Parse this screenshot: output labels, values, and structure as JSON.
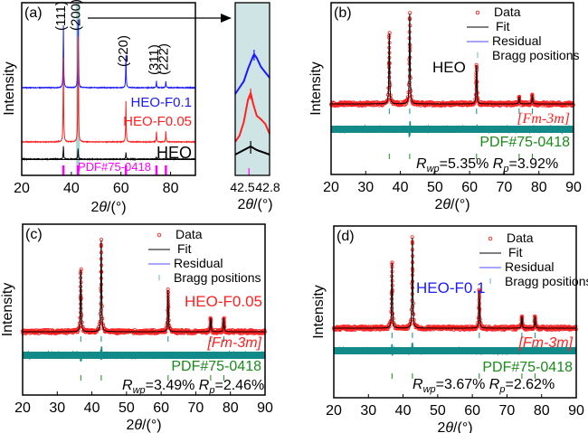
{
  "figure": {
    "colors": {
      "blue": "#1a1aff",
      "red": "#ff2020",
      "black": "#000000",
      "magenta": "#ff00ff",
      "teal": "#138a8a",
      "green": "#1a8a1a",
      "inset_bg": "#cfe5e5",
      "highlight": "#a8d4d4",
      "residual_legend": "#8888ff",
      "bragg_legend": "#66bbbb"
    }
  },
  "chart_data": [
    {
      "id": "a",
      "type": "line",
      "panel_label": "(a)",
      "xlabel": "2θ/(°)",
      "ylabel": "Intensity",
      "xlim": [
        20,
        90
      ],
      "xticks": [
        20,
        40,
        60,
        80
      ],
      "series": [
        {
          "name": "HEO-F0.1",
          "color": "blue",
          "offset": 3,
          "peaks": [
            [
              36.8,
              0.55
            ],
            [
              42.7,
              0.62
            ],
            [
              62.0,
              0.29
            ],
            [
              74.3,
              0.06
            ],
            [
              78.1,
              0.06
            ]
          ]
        },
        {
          "name": "HEO-F0.05",
          "color": "red",
          "offset": 2,
          "peaks": [
            [
              36.8,
              0.62
            ],
            [
              42.7,
              0.8
            ],
            [
              62.0,
              0.3
            ],
            [
              74.3,
              0.08
            ],
            [
              78.1,
              0.08
            ]
          ]
        },
        {
          "name": "HEO",
          "color": "black",
          "offset": 1,
          "peaks": [
            [
              36.8,
              0.12
            ],
            [
              42.7,
              0.1
            ],
            [
              62.0,
              0.06
            ],
            [
              74.3,
              0.02
            ],
            [
              78.1,
              0.02
            ]
          ]
        }
      ],
      "miller_indices": [
        {
          "label": "(111)",
          "x": 36.8
        },
        {
          "label": "(200)",
          "x": 42.7
        },
        {
          "label": "(220)",
          "x": 62.0
        },
        {
          "label": "(311)",
          "x": 74.3
        },
        {
          "label": "(222)",
          "x": 78.1
        }
      ],
      "reference": {
        "label": "PDF#75-0418",
        "positions": [
          36.8,
          42.7,
          62.0,
          74.3,
          78.1
        ]
      },
      "sample_labels": [
        "HEO-F0.1",
        "HEO-F0.05",
        "HEO"
      ]
    },
    {
      "id": "a-inset",
      "type": "line",
      "xlabel": "2θ/(°)",
      "xlim": [
        42.45,
        42.85
      ],
      "xticks": [
        42.5,
        42.8
      ],
      "series": [
        {
          "name": "HEO-F0.1",
          "color": "blue",
          "peak_x": 42.67
        },
        {
          "name": "HEO-F0.05",
          "color": "red",
          "peak_x": 42.63
        },
        {
          "name": "HEO",
          "color": "black",
          "peak_x": 42.63
        }
      ],
      "reference_position": 42.61
    },
    {
      "id": "b",
      "type": "scatter",
      "panel_label": "(b)",
      "xlabel": "2θ/(°)",
      "ylabel": "Intensity",
      "xlim": [
        20,
        90
      ],
      "xticks": [
        20,
        30,
        40,
        50,
        60,
        70,
        80,
        90
      ],
      "legend": [
        "Data",
        "Fit",
        "Residual",
        "Bragg positions"
      ],
      "sample": "HEO",
      "sample_color": "black",
      "space_group": "[Fm-3m]",
      "reference": "PDF#75-0418",
      "rwp": "=5.35%",
      "rp": "=3.92%",
      "peaks": [
        [
          36.8,
          0.78
        ],
        [
          42.7,
          1.0
        ],
        [
          62.0,
          0.43
        ],
        [
          74.3,
          0.08
        ],
        [
          78.1,
          0.1
        ]
      ],
      "bragg_positions": [
        36.8,
        42.7,
        62.0,
        74.3,
        78.1
      ]
    },
    {
      "id": "c",
      "type": "scatter",
      "panel_label": "(c)",
      "xlabel": "2θ/(°)",
      "ylabel": "Intensity",
      "xlim": [
        20,
        90
      ],
      "xticks": [
        20,
        30,
        40,
        50,
        60,
        70,
        80,
        90
      ],
      "legend": [
        "Data",
        "Fit",
        "Residual",
        "Bragg positions"
      ],
      "sample": "HEO-F0.05",
      "sample_color": "red",
      "space_group": "[Fm-3m]",
      "reference": "PDF#75-0418",
      "rwp": "=3.49%",
      "rp": "=2.46%",
      "peaks": [
        [
          36.8,
          0.68
        ],
        [
          42.7,
          1.0
        ],
        [
          62.0,
          0.46
        ],
        [
          74.3,
          0.15
        ],
        [
          78.1,
          0.15
        ]
      ],
      "bragg_positions": [
        36.8,
        42.7,
        62.0,
        74.3,
        78.1
      ]
    },
    {
      "id": "d",
      "type": "scatter",
      "panel_label": "(d)",
      "xlabel": "2θ/(°)",
      "ylabel": "Intensity",
      "xlim": [
        20,
        90
      ],
      "xticks": [
        20,
        30,
        40,
        50,
        60,
        70,
        80,
        90
      ],
      "legend": [
        "Data",
        "Fit",
        "Residual",
        "Bragg positions"
      ],
      "sample": "HEO-F0.1",
      "sample_color": "blue",
      "space_group": "[Fm-3m]",
      "reference": "PDF#75-0418",
      "rwp": "=3.67%",
      "rp": "=2.62%",
      "peaks": [
        [
          36.8,
          0.72
        ],
        [
          42.7,
          1.0
        ],
        [
          62.0,
          0.42
        ],
        [
          74.3,
          0.13
        ],
        [
          78.1,
          0.13
        ]
      ],
      "bragg_positions": [
        36.8,
        42.7,
        62.0,
        74.3,
        78.1
      ]
    }
  ]
}
